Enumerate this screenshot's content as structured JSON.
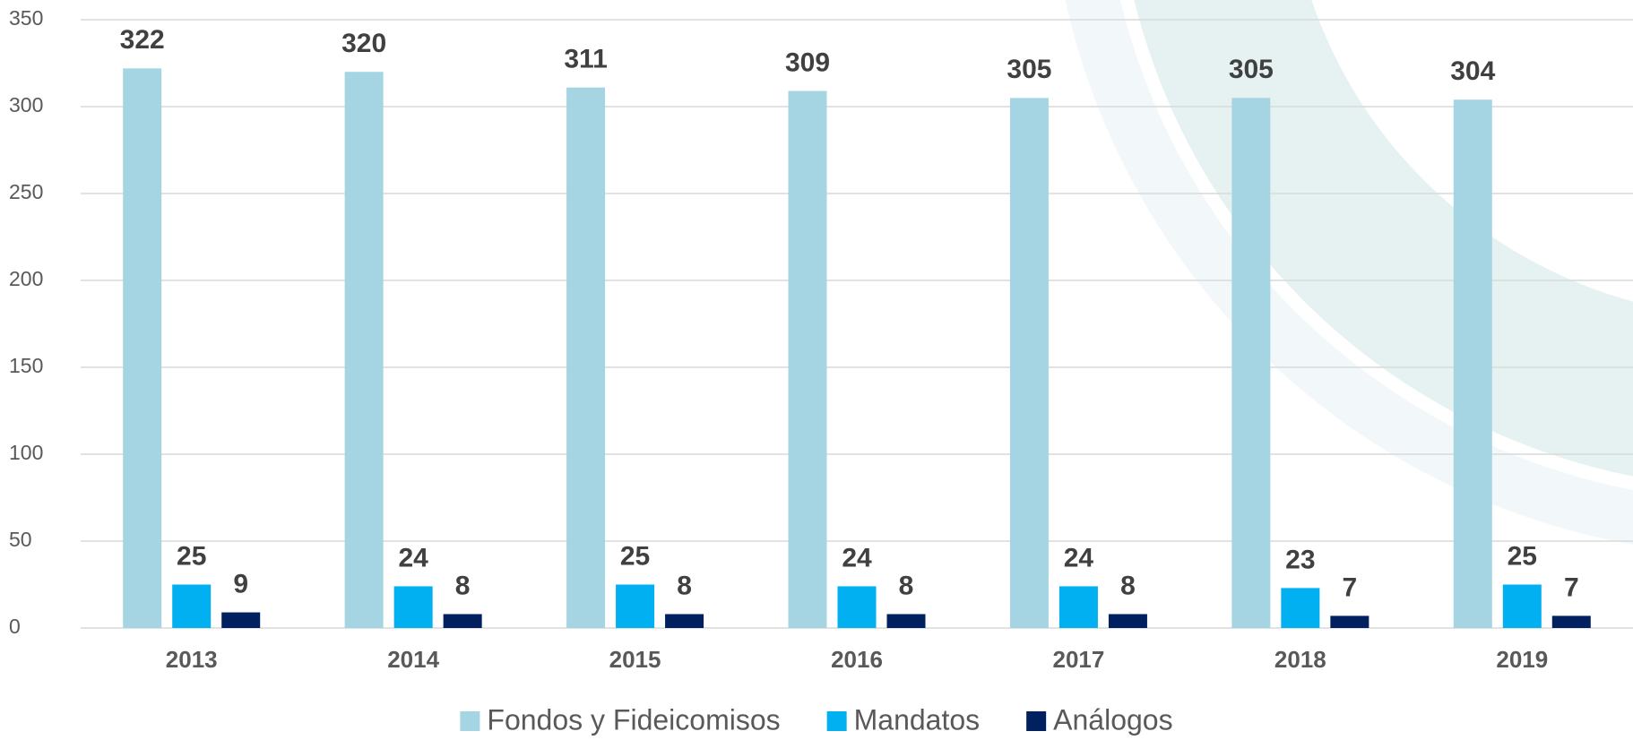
{
  "chart_data": {
    "type": "bar",
    "categories": [
      "2013",
      "2014",
      "2015",
      "2016",
      "2017",
      "2018",
      "2019"
    ],
    "series": [
      {
        "name": "Fondos y Fideicomisos",
        "color": "#a5d5e2",
        "values": [
          322,
          320,
          311,
          309,
          305,
          305,
          304
        ]
      },
      {
        "name": "Mandatos",
        "color": "#00b0f0",
        "values": [
          25,
          24,
          25,
          24,
          24,
          23,
          25
        ]
      },
      {
        "name": "Análogos",
        "color": "#002060",
        "values": [
          9,
          8,
          8,
          8,
          8,
          7,
          7
        ]
      }
    ],
    "ylim": [
      0,
      350
    ],
    "yticks": [
      0,
      50,
      100,
      150,
      200,
      250,
      300,
      350
    ],
    "grid": true,
    "legend": "bottom"
  }
}
